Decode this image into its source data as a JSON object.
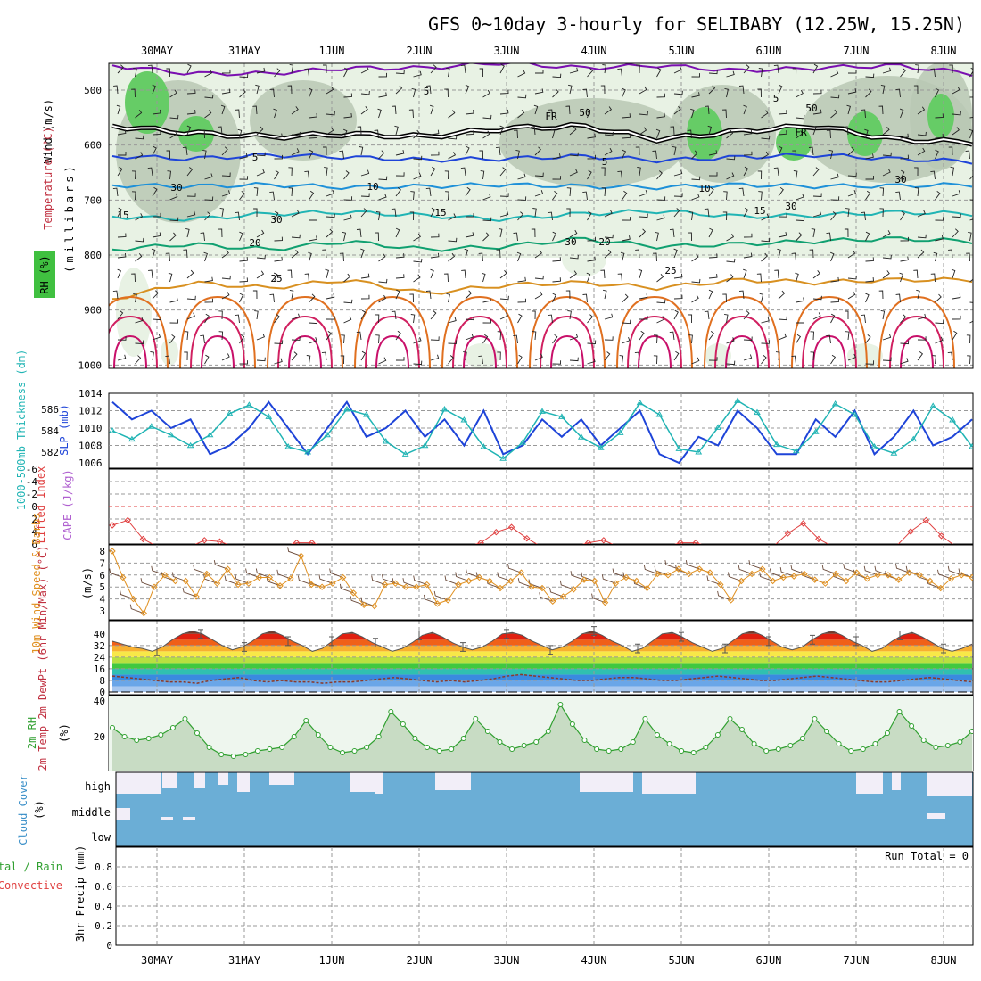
{
  "chart_data": {
    "title": "GFS 0~10day 3-hourly for SELIBABY (12.25W, 15.25N)",
    "dates": [
      "30MAY",
      "31MAY",
      "1JUN",
      "2JUN",
      "3JUN",
      "4JUN",
      "5JUN",
      "6JUN",
      "7JUN",
      "8JUN"
    ],
    "panels": {
      "upper_air": {
        "type": "heatmap",
        "ylabel_wind": "Wind (m/s)",
        "ylabel_temp": "Temperature (°C)",
        "ylabel_rh": "RH (%)",
        "ylabel_units": "(millibars)",
        "yticks": [
          "500",
          "600",
          "700",
          "800",
          "900",
          "1000"
        ],
        "isotherm_labels": [
          "5",
          "5",
          "FR",
          "FR",
          "5",
          "5",
          "10",
          "10",
          "15",
          "15",
          "15",
          "20",
          "20",
          "25",
          "25",
          "30",
          "30",
          "50",
          "50",
          "30",
          "30",
          "30"
        ],
        "isotherms": [
          {
            "temp": 5,
            "color": "#7a10b0",
            "p": [
              455,
              470,
              470,
              460,
              460,
              450,
              460,
              455,
              465,
              460,
              455,
              470
            ]
          },
          {
            "temp": 0,
            "color": "#000000",
            "p": [
              565,
              578,
              585,
              580,
              585,
              570,
              565,
              590,
              575,
              565,
              590,
              595
            ]
          },
          {
            "temp": -5,
            "color": "#1e44d8",
            "p": [
              620,
              625,
              618,
              622,
              627,
              625,
              620,
              628,
              622,
              618,
              625,
              630
            ]
          },
          {
            "temp": 10,
            "color": "#1e90d8",
            "p": [
              673,
              675,
              672,
              677,
              675,
              672,
              675,
              677,
              672,
              675,
              674,
              672
            ]
          },
          {
            "temp": 15,
            "color": "#20b4b4",
            "p": [
              730,
              735,
              725,
              722,
              728,
              735,
              725,
              720,
              730,
              728,
              722,
              725
            ]
          },
          {
            "temp": 20,
            "color": "#10a070",
            "p": [
              790,
              780,
              790,
              775,
              790,
              785,
              770,
              785,
              780,
              775,
              770,
              775
            ]
          },
          {
            "temp": 25,
            "color": "#d89020",
            "p": [
              880,
              850,
              860,
              845,
              870,
              855,
              850,
              860,
              845,
              850,
              845,
              845
            ]
          }
        ]
      },
      "thickness_slp": {
        "type": "line",
        "ylabel_left": "1000-500mb Thickness (dm)",
        "ylabel_right": "SLP (mb)",
        "left_ticks": [
          "586",
          "584",
          "582"
        ],
        "right_ticks": [
          "1014",
          "1012",
          "1010",
          "1008",
          "1006"
        ],
        "slp": [
          1013,
          1011,
          1012,
          1010,
          1011,
          1007,
          1008,
          1010,
          1013,
          1010,
          1007,
          1010,
          1013,
          1009,
          1010,
          1012,
          1009,
          1011,
          1008,
          1012,
          1007,
          1008,
          1011,
          1009,
          1011,
          1008,
          1010,
          1012,
          1007,
          1006,
          1009,
          1008,
          1012,
          1010,
          1007,
          1007,
          1011,
          1009,
          1012,
          1007,
          1009,
          1012,
          1008,
          1009,
          1011
        ],
        "thickness": [
          584.0,
          583.2,
          584.4,
          583.6,
          582.6,
          583.6,
          585.6,
          586.4,
          585.3,
          582.5,
          582.0,
          583.6,
          586.0,
          585.5,
          583.0,
          581.8,
          582.6,
          586.0,
          585.0,
          582.5,
          581.4,
          582.9,
          585.8,
          585.3,
          583.4,
          582.4,
          583.8,
          586.6,
          585.5,
          582.3,
          582.0,
          584.3,
          586.8,
          585.7,
          582.7,
          582.1,
          583.9,
          586.5,
          585.5,
          582.5,
          581.9,
          583.2,
          586.3,
          585.0,
          582.5
        ]
      },
      "cape_li": {
        "type": "line",
        "ylabel_left": "Lifted Index",
        "ylabel_right": "CAPE (J/kg)",
        "yticks": [
          "-6",
          "-4",
          "-2",
          "0",
          "2",
          "4",
          "6"
        ],
        "li": [
          3.0,
          2.2,
          5.2,
          6.5,
          6.5,
          6.5,
          5.4,
          5.6,
          6.5,
          6.5,
          6.5,
          6.5,
          5.8,
          5.8,
          6.5,
          6.5,
          6.5,
          6.5,
          6.5,
          6.5,
          6.5,
          6.5,
          6.5,
          6.5,
          5.8,
          4.1,
          3.3,
          5.1,
          6.5,
          6.5,
          6.5,
          5.8,
          5.4,
          6.5,
          6.5,
          6.5,
          6.5,
          5.8,
          5.8,
          6.5,
          6.5,
          6.5,
          6.5,
          6.5,
          4.3,
          2.7,
          5.2,
          6.5,
          6.5,
          6.5,
          6.5,
          6.5,
          4.0,
          2.2,
          4.7,
          6.5,
          6.5
        ]
      },
      "wind10m": {
        "type": "line",
        "ylabel": "10m Wind Speed & Barbs",
        "units": "(m/s)",
        "yticks": [
          "8",
          "7",
          "6",
          "5",
          "4",
          "3"
        ],
        "speed": [
          8.0,
          5.8,
          4.0,
          2.8,
          5.0,
          6.0,
          5.5,
          5.5,
          4.2,
          6.1,
          5.3,
          6.5,
          5.2,
          5.3,
          5.8,
          5.8,
          5.1,
          5.7,
          7.6,
          5.2,
          5.0,
          5.3,
          5.8,
          4.5,
          3.5,
          3.4,
          5.2,
          5.3,
          5.0,
          5.0,
          5.2,
          3.6,
          3.9,
          5.2,
          5.5,
          5.8,
          5.5,
          4.9,
          5.5,
          6.2,
          5.0,
          4.9,
          3.8,
          4.2,
          4.8,
          5.6,
          5.5,
          3.7,
          5.3,
          5.8,
          5.5,
          4.9,
          6.1,
          6.0,
          6.5,
          6.1,
          6.5,
          6.2,
          5.2,
          3.9,
          5.5,
          6.1,
          6.5,
          5.5,
          5.8,
          5.9,
          6.1,
          5.6,
          5.3,
          6.1,
          5.5,
          6.2,
          5.7,
          6.0,
          6.0,
          5.6,
          6.2,
          6.0,
          5.5,
          4.9,
          5.7,
          6.0,
          5.8
        ]
      },
      "temp2m": {
        "type": "area",
        "ylabel": "2m Temp 2m DewPt (6hr Min/Max) (°C)",
        "yticks": [
          "40",
          "32",
          "24",
          "16",
          "8",
          "0"
        ],
        "temp": [
          35,
          33,
          31,
          30,
          28,
          31,
          36,
          40,
          42,
          40,
          36,
          32,
          29,
          31,
          35,
          40,
          42,
          39,
          35,
          32,
          28,
          30,
          35,
          40,
          41,
          38,
          34,
          31,
          28,
          30,
          34,
          39,
          41,
          38,
          34,
          31,
          29,
          31,
          35,
          40,
          41,
          39,
          35,
          32,
          29,
          31,
          35,
          40,
          42,
          39,
          35,
          32,
          28,
          30,
          35,
          40,
          41,
          38,
          34,
          31,
          28,
          30,
          35,
          40,
          42,
          39,
          35,
          31,
          29,
          31,
          36,
          40,
          42,
          39,
          35,
          32,
          28,
          30,
          35,
          39,
          41,
          38,
          34,
          30,
          28,
          30,
          33
        ],
        "dewpt": [
          11,
          10,
          9,
          8,
          7,
          7,
          6,
          8,
          9,
          10,
          8,
          7,
          8,
          7,
          7,
          6,
          7,
          7,
          8,
          9,
          10,
          9,
          8,
          7,
          8,
          7,
          8,
          9,
          11,
          12,
          11,
          10,
          9,
          8,
          8,
          9,
          10,
          10,
          9,
          8,
          8,
          9,
          10,
          11,
          10,
          9,
          8,
          8,
          9,
          10,
          11,
          10,
          9,
          8,
          7,
          7,
          8,
          9,
          10,
          9,
          8,
          7
        ]
      },
      "rh2m": {
        "type": "area",
        "ylabel": "2m RH",
        "units": "(%)",
        "yticks": [
          "40",
          "20"
        ],
        "rh": [
          25,
          20,
          18,
          19,
          21,
          25,
          30,
          22,
          14,
          10,
          9,
          10,
          12,
          13,
          14,
          20,
          29,
          21,
          14,
          11,
          12,
          14,
          20,
          34,
          27,
          19,
          14,
          12,
          13,
          19,
          30,
          23,
          17,
          13,
          15,
          17,
          23,
          38,
          27,
          18,
          13,
          12,
          13,
          17,
          30,
          21,
          16,
          12,
          11,
          14,
          21,
          30,
          24,
          16,
          12,
          13,
          15,
          19,
          30,
          23,
          16,
          12,
          13,
          16,
          22,
          34,
          26,
          18,
          14,
          15,
          17,
          23
        ]
      },
      "cloud": {
        "type": "heatmap",
        "ylabel": "Cloud Cover",
        "units": "(%)",
        "levels": [
          "high",
          "middle",
          "low"
        ]
      },
      "precip": {
        "type": "bar",
        "ylabel_left": "Total / Rain",
        "ylabel_left2": "Convective",
        "ylabel": "3hr Precip (mm)",
        "yticks": [
          "0.8",
          "0.6",
          "0.4",
          "0.2",
          "0"
        ],
        "run_total": "Run Total = 0",
        "values": []
      }
    }
  }
}
